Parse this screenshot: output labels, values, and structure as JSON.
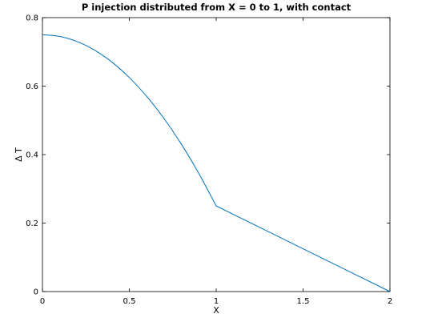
{
  "chart_data": {
    "type": "line",
    "title": "P injection distributed from X = 0 to 1, with contact",
    "xlabel": "X",
    "ylabel": "Δ T",
    "xlim": [
      0,
      2
    ],
    "ylim": [
      0,
      0.8
    ],
    "xticks": [
      0,
      0.5,
      1,
      1.5,
      2
    ],
    "xtick_labels": [
      "0",
      "0.5",
      "1",
      "1.5",
      "2"
    ],
    "yticks": [
      0,
      0.2,
      0.4,
      0.6,
      0.8
    ],
    "ytick_labels": [
      "0",
      "0.2",
      "0.4",
      "0.6",
      "0.8"
    ],
    "grid": false,
    "legend": "none",
    "series": [
      {
        "color": "#0072bd",
        "x": [
          0,
          0.1,
          0.2,
          0.3,
          0.4,
          0.5,
          0.6,
          0.7,
          0.8,
          0.9,
          1.0,
          1.25,
          1.5,
          1.75,
          2.0
        ],
        "y": [
          0.75,
          0.745,
          0.73,
          0.705,
          0.67,
          0.625,
          0.57,
          0.505,
          0.43,
          0.345,
          0.25,
          0.1875,
          0.125,
          0.0625,
          0.0
        ]
      }
    ]
  }
}
